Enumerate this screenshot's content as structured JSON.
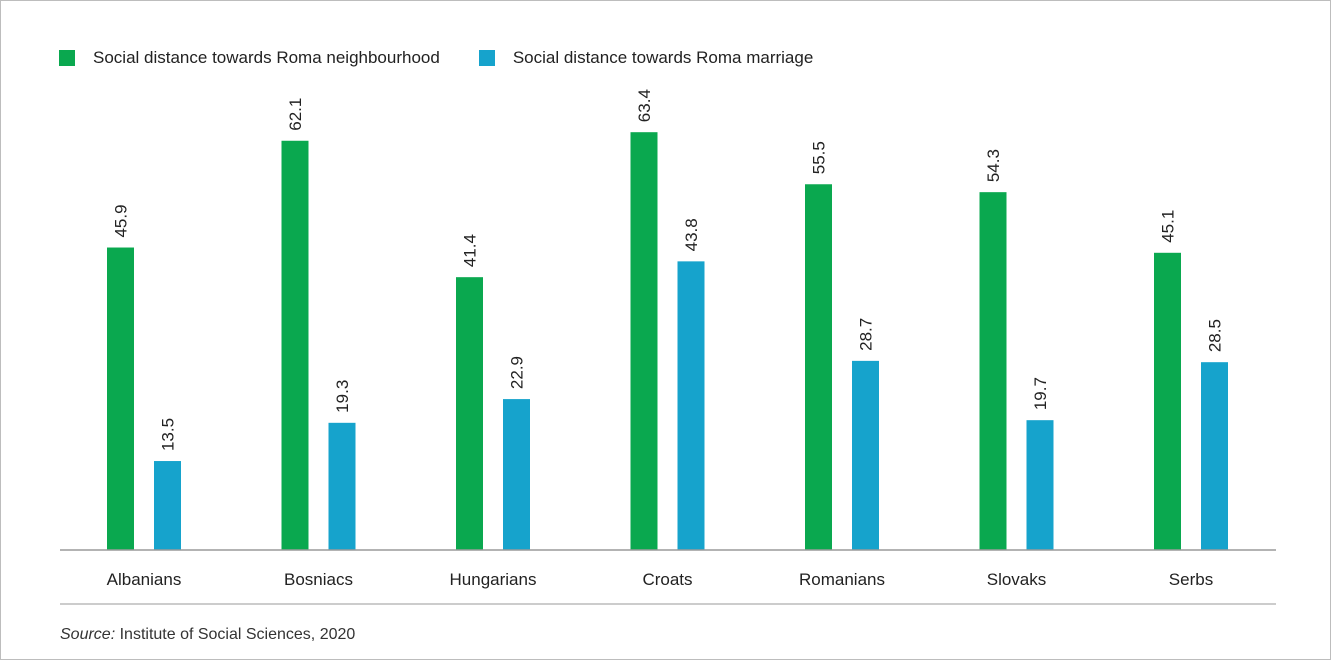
{
  "colors": {
    "neighbourhood": "#0aa84f",
    "marriage": "#16a3cc",
    "axis": "#9a9a9a",
    "text": "#222222"
  },
  "chart_data": {
    "type": "bar",
    "categories": [
      "Albanians",
      "Bosniacs",
      "Hungarians",
      "Croats",
      "Romanians",
      "Slovaks",
      "Serbs"
    ],
    "series": [
      {
        "name": "Social distance towards Roma neighbourhood",
        "values": [
          45.9,
          62.1,
          41.4,
          63.4,
          55.5,
          54.3,
          45.1
        ]
      },
      {
        "name": "Social distance towards Roma marriage",
        "values": [
          13.5,
          19.3,
          22.9,
          43.8,
          28.7,
          19.7,
          28.5
        ]
      }
    ],
    "ylim": [
      0,
      70
    ],
    "grid": false,
    "legend_position": "top-left",
    "data_labels": "rotated-vertical"
  },
  "source": {
    "prefix": "Source:",
    "text": "Institute of Social Sciences, 2020"
  }
}
